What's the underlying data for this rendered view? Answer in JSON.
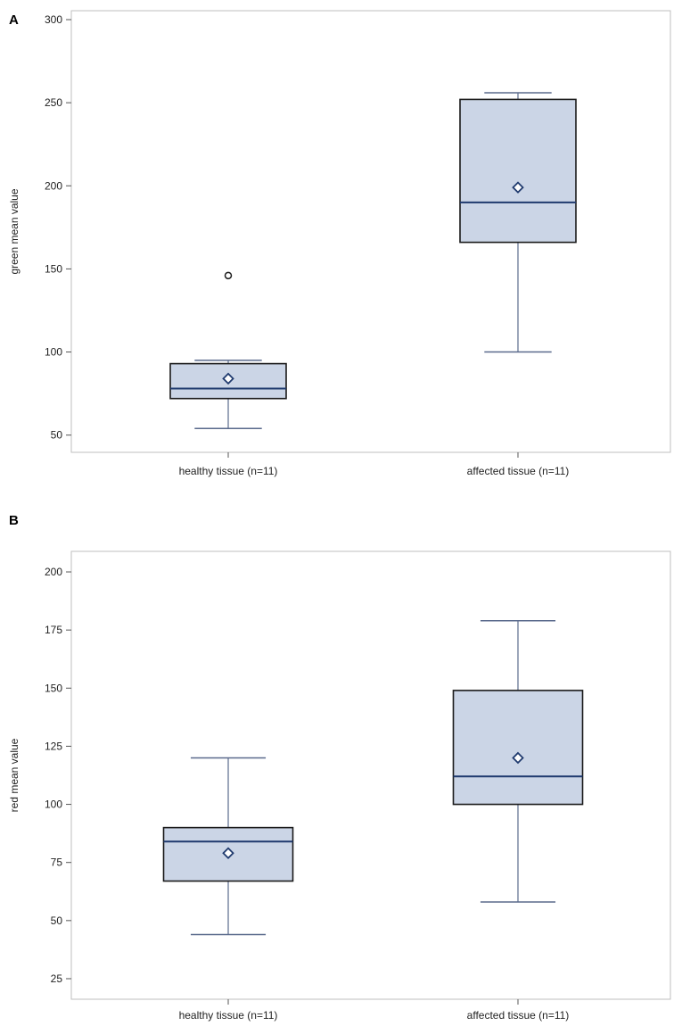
{
  "chart_data": [
    {
      "panel": "A",
      "type": "boxplot",
      "title": "",
      "xlabel": "",
      "ylabel": "green mean value",
      "ylim": [
        45,
        300
      ],
      "yticks": [
        50,
        100,
        150,
        200,
        250,
        300
      ],
      "categories": [
        "healthy tissue (n=11)",
        "affected tissue (n=11)"
      ],
      "boxes": [
        {
          "category": "healthy tissue (n=11)",
          "whisker_low": 54,
          "q1": 72,
          "median": 78,
          "q3": 93,
          "whisker_high": 95,
          "mean": 84,
          "outliers": [
            146
          ]
        },
        {
          "category": "affected tissue (n=11)",
          "whisker_low": 100,
          "q1": 166,
          "median": 190,
          "q3": 252,
          "whisker_high": 256,
          "mean": 199,
          "outliers": []
        }
      ],
      "colors": {
        "box_fill": "#cbd5e6",
        "box_edge": "#1a1a1a",
        "median": "#1f3a6e",
        "whisker": "#5a6a8c",
        "mean_marker": "#1f3a6e",
        "frame": "#bfbfbf"
      }
    },
    {
      "panel": "B",
      "type": "boxplot",
      "title": "",
      "xlabel": "",
      "ylabel": "red mean value",
      "ylim": [
        20,
        205
      ],
      "yticks": [
        25,
        50,
        75,
        100,
        125,
        150,
        175,
        200
      ],
      "categories": [
        "healthy tissue (n=11)",
        "affected tissue (n=11)"
      ],
      "boxes": [
        {
          "category": "healthy tissue (n=11)",
          "whisker_low": 44,
          "q1": 67,
          "median": 84,
          "q3": 90,
          "whisker_high": 120,
          "mean": 79,
          "outliers": []
        },
        {
          "category": "affected tissue (n=11)",
          "whisker_low": 58,
          "q1": 100,
          "median": 112,
          "q3": 149,
          "whisker_high": 179,
          "mean": 120,
          "outliers": []
        }
      ],
      "colors": {
        "box_fill": "#cbd5e6",
        "box_edge": "#1a1a1a",
        "median": "#1f3a6e",
        "whisker": "#5a6a8c",
        "mean_marker": "#1f3a6e",
        "frame": "#bfbfbf"
      }
    }
  ],
  "panel_labels": {
    "a": "A",
    "b": "B"
  }
}
